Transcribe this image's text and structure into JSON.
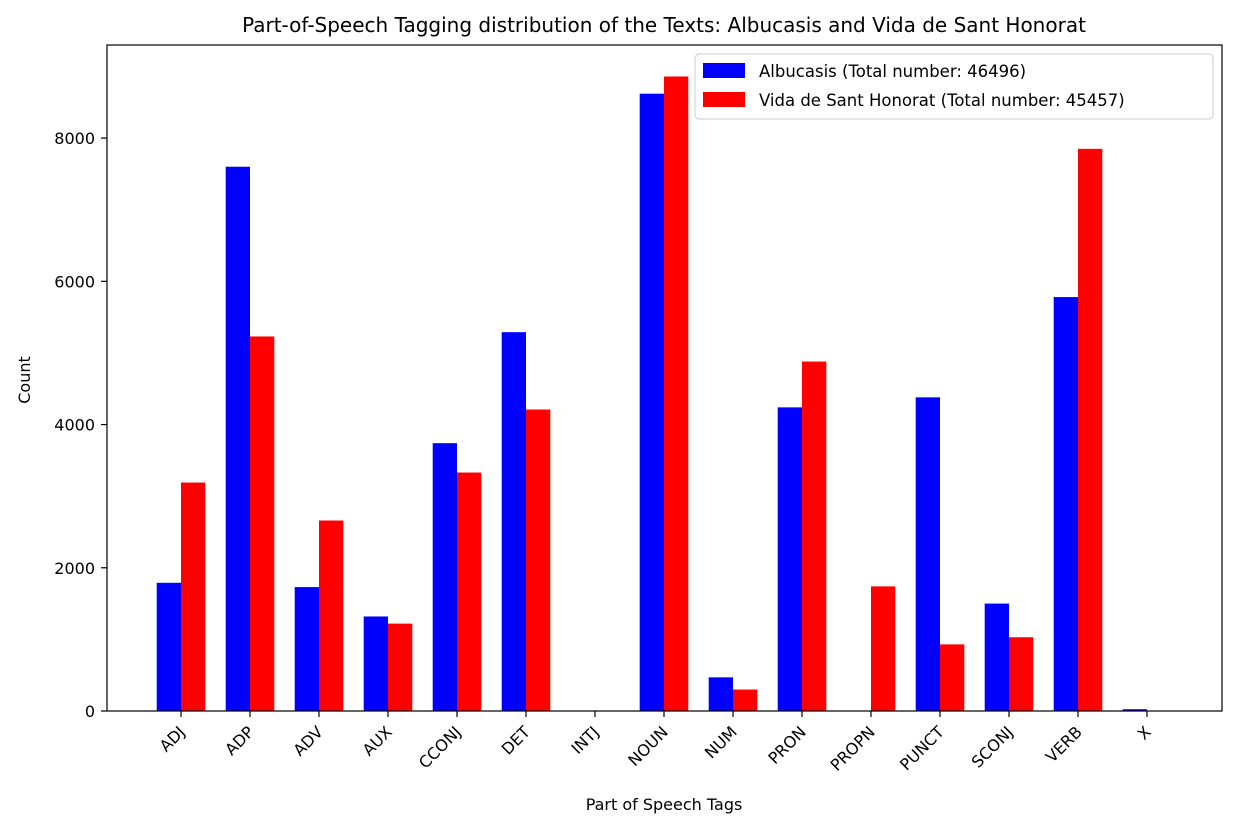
{
  "chart_data": {
    "type": "bar",
    "title": "Part-of-Speech Tagging distribution of the Texts: Albucasis and Vida de Sant Honorat",
    "xlabel": "Part of Speech Tags",
    "ylabel": "Count",
    "categories": [
      "ADJ",
      "ADP",
      "ADV",
      "AUX",
      "CCONJ",
      "DET",
      "INTJ",
      "NOUN",
      "NUM",
      "PRON",
      "PROPN",
      "PUNCT",
      "SCONJ",
      "VERB",
      "X"
    ],
    "series": [
      {
        "name": "Albucasis (Total number: 46496)",
        "color": "#0000ff",
        "values": [
          1790,
          7600,
          1730,
          1320,
          3740,
          5290,
          5,
          8620,
          470,
          4240,
          5,
          4380,
          1500,
          5780,
          25
        ]
      },
      {
        "name": "Vida de Sant Honorat (Total number: 45457)",
        "color": "#ff0000",
        "values": [
          3190,
          5230,
          2660,
          1220,
          3330,
          4210,
          5,
          8860,
          300,
          4880,
          1740,
          930,
          1030,
          7850,
          5
        ]
      }
    ],
    "ylim": [
      0,
      9300
    ],
    "yticks": [
      0,
      2000,
      4000,
      6000,
      8000
    ],
    "ytick_labels": [
      "0",
      "2000",
      "4000",
      "6000",
      "8000"
    ],
    "legend_position": "upper right",
    "grid": false
  }
}
